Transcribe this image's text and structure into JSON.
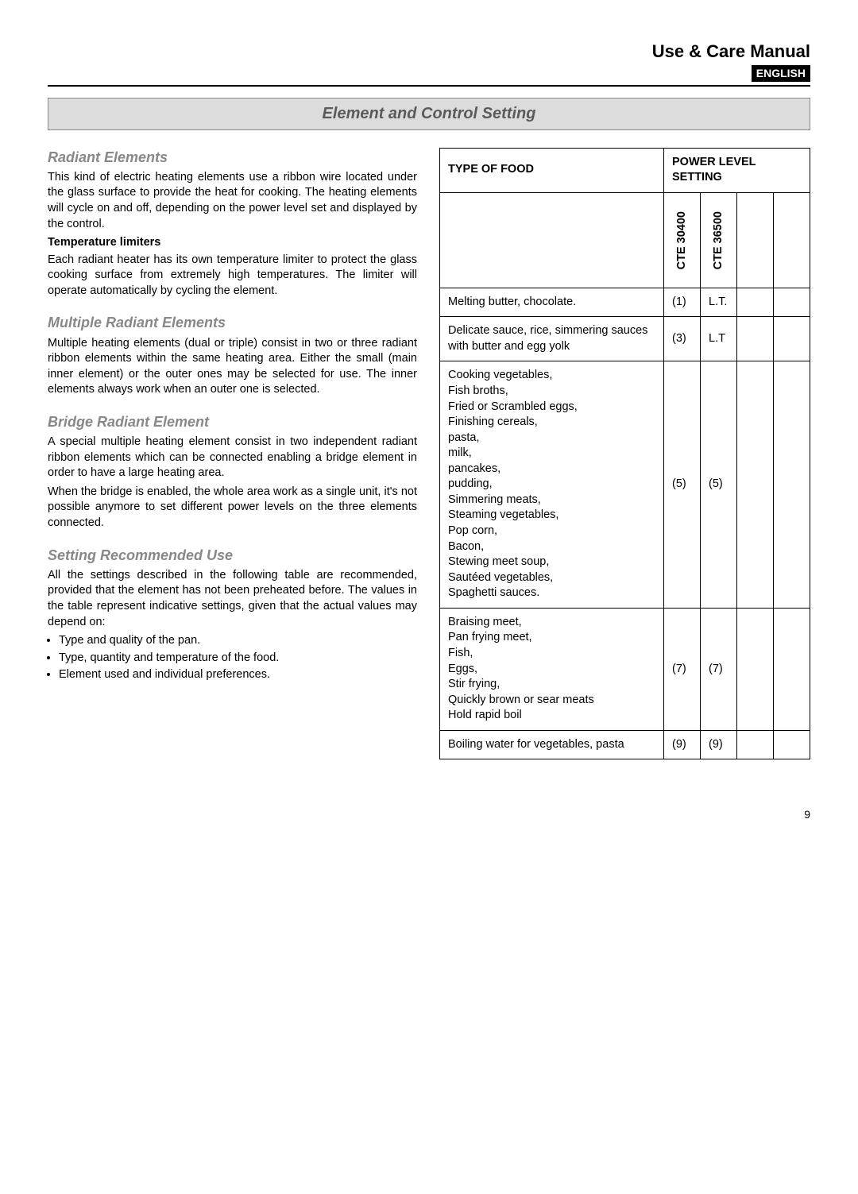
{
  "header": {
    "manual_title": "Use & Care Manual",
    "language_badge": "ENGLISH"
  },
  "section_banner": "Element and Control Setting",
  "left": {
    "radiant": {
      "heading": "Radiant Elements",
      "p1": "This kind of electric heating elements use a ribbon wire located under the glass surface to provide the heat for cooking. The heating elements will cycle on and off, depending on the power level set and displayed by the control.",
      "temp_label": "Temperature limiters",
      "p2": "Each radiant heater has its own temperature limiter to protect the glass cooking surface from extremely high temperatures. The limiter will operate automatically by cycling the element."
    },
    "multiple": {
      "heading": "Multiple Radiant Elements",
      "p1": "Multiple heating elements (dual or triple) consist in two or three radiant ribbon elements within the same heating area. Either the small (main inner element) or the outer ones may be selected for use. The inner elements always work when an outer one is selected."
    },
    "bridge": {
      "heading": "Bridge Radiant Element",
      "p1": "A special multiple heating element consist in two independent radiant ribbon elements which can be connected enabling a bridge element in order to have a large heating area.",
      "p2": "When the bridge is enabled, the whole area work as a single unit, it's not possible anymore to set different power levels on the three elements connected."
    },
    "setting": {
      "heading": "Setting Recommended Use",
      "p1": "All the settings described in the following table are recommended, provided that the element has not been preheated before. The values in the table represent indicative settings, given that the actual values may depend on:",
      "bullets": [
        "Type and quality of the pan.",
        "Type, quantity and temperature of the food.",
        "Element used and individual preferences."
      ]
    }
  },
  "table": {
    "header_food": "TYPE OF FOOD",
    "header_power": "POWER LEVEL SETTING",
    "model_cols": [
      "CTE 30400",
      "CTE 36500"
    ],
    "rows": [
      {
        "food": "Melting butter, chocolate.",
        "c1": "(1)",
        "c2": "L.T."
      },
      {
        "food": "Delicate sauce, rice, simmering sauces with butter and egg yolk",
        "c1": "(3)",
        "c2": "L.T"
      },
      {
        "food": "Cooking vegetables,\nFish broths,\nFried or Scrambled eggs,\nFinishing cereals,\npasta,\nmilk,\npancakes,\npudding,\nSimmering meats,\nSteaming vegetables,\nPop corn,\nBacon,\nStewing meet soup,\nSautéed vegetables,\nSpaghetti sauces.",
        "c1": "(5)",
        "c2": "(5)"
      },
      {
        "food": "Braising meet,\nPan frying meet,\nFish,\nEggs,\nStir frying,\nQuickly brown or sear meats\nHold rapid boil",
        "c1": "(7)",
        "c2": "(7)"
      },
      {
        "food": "Boiling water for vegetables, pasta",
        "c1": "(9)",
        "c2": "(9)"
      }
    ]
  },
  "page_number": "9"
}
